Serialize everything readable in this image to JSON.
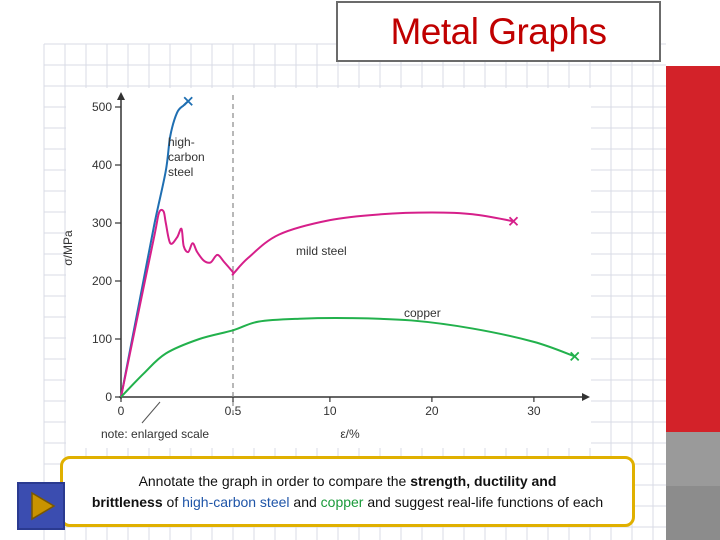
{
  "slide": {
    "title": "Metal Graphs",
    "prompt": {
      "p1": "Annotate the graph in order to compare the ",
      "p2": "strength, ductility and",
      "p3": "brittleness",
      "p4": " of ",
      "p5": "high-carbon steel",
      "p6": " and ",
      "p7": "copper",
      "p8": " and suggest real-life functions of each"
    },
    "colors": {
      "title": "#c00000",
      "accent_bar": "#d32229",
      "callout_border": "#e0b000",
      "steel_text": "#1f55a8",
      "copper_text": "#1a9a3a"
    },
    "play_icon": "play-triangle-icon"
  },
  "chart_data": {
    "type": "line",
    "xlabel": "ε/%",
    "ylabel": "σ/MPa",
    "note": "note: enlarged scale",
    "grid": false,
    "ylim": [
      0,
      500
    ],
    "y_ticks": [
      0,
      100,
      200,
      300,
      400,
      500
    ],
    "x_ticks": [
      "0",
      "0.5",
      "10",
      "20",
      "30"
    ],
    "x_scale_break": "axis drawn to enlarged scale between 0 and 0.5; dashed line at 0.5",
    "series": [
      {
        "name": "high-\ncarbon\nsteel",
        "color": "#1f6fb2",
        "end_marker": "x",
        "points": [
          [
            0,
            0
          ],
          [
            0.05,
            100
          ],
          [
            0.1,
            200
          ],
          [
            0.15,
            300
          ],
          [
            0.2,
            390
          ],
          [
            0.22,
            450
          ],
          [
            0.25,
            490
          ],
          [
            0.28,
            503
          ],
          [
            0.3,
            510
          ]
        ]
      },
      {
        "name": "mild steel",
        "color": "#d61f8a",
        "end_marker": "x",
        "points": [
          [
            0,
            0
          ],
          [
            0.08,
            150
          ],
          [
            0.15,
            280
          ],
          [
            0.17,
            318
          ],
          [
            0.19,
            320
          ],
          [
            0.2,
            300
          ],
          [
            0.22,
            265
          ],
          [
            0.25,
            275
          ],
          [
            0.27,
            290
          ],
          [
            0.28,
            260
          ],
          [
            0.3,
            250
          ],
          [
            0.32,
            265
          ],
          [
            0.34,
            250
          ],
          [
            0.37,
            235
          ],
          [
            0.4,
            232
          ],
          [
            0.43,
            245
          ],
          [
            0.46,
            233
          ],
          [
            0.5,
            215
          ],
          [
            0.55,
            213
          ],
          [
            2,
            240
          ],
          [
            5,
            280
          ],
          [
            10,
            305
          ],
          [
            15,
            315
          ],
          [
            20,
            318
          ],
          [
            24,
            315
          ],
          [
            28,
            303
          ]
        ]
      },
      {
        "name": "copper",
        "color": "#22b14c",
        "end_marker": "x",
        "points": [
          [
            0,
            0
          ],
          [
            0.1,
            40
          ],
          [
            0.2,
            75
          ],
          [
            0.35,
            100
          ],
          [
            0.5,
            115
          ],
          [
            3,
            130
          ],
          [
            7,
            135
          ],
          [
            12,
            136
          ],
          [
            18,
            132
          ],
          [
            24,
            118
          ],
          [
            30,
            95
          ],
          [
            34,
            70
          ]
        ]
      }
    ]
  }
}
